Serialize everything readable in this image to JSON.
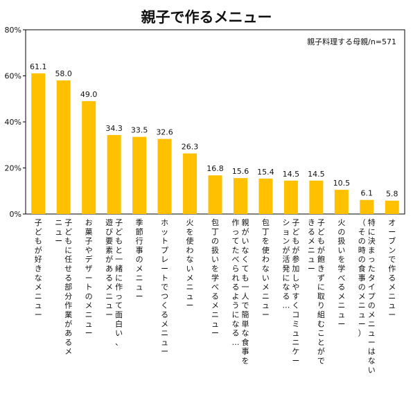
{
  "chart_data": {
    "type": "bar",
    "title": "親子で作るメニュー",
    "annotation": "親子料理する母親/n=571",
    "ylim": [
      0,
      80
    ],
    "yticks": [
      "0%",
      "20%",
      "40%",
      "60%",
      "80%"
    ],
    "ytick_values": [
      0,
      20,
      40,
      60,
      80
    ],
    "grid": false,
    "bar_color": "#ffc000",
    "categories": [
      [
        "子どもが好きなメニュー"
      ],
      [
        "子どもに任せる部分作業があるメ",
        "ニュー"
      ],
      [
        "お菓子やデザートのメニュー"
      ],
      [
        "子どもと一緒に作って面白い、",
        "遊び要素があるメニュー"
      ],
      [
        "季節行事のメニュー"
      ],
      [
        "ホットプレートでつくるメニュー"
      ],
      [
        "火を使わないメニュー"
      ],
      [
        "包丁の扱いを学べるメニュー"
      ],
      [
        "親がいなくても一人で簡単な食事を",
        "作ってたべられるようになる…"
      ],
      [
        "包丁を使わないメニュー"
      ],
      [
        "子どもが参加しやすくコミュニケー",
        "ションが活発になる…"
      ],
      [
        "子どもが飽きずに取り組むことがで",
        "きるメニュー"
      ],
      [
        "火の扱いを学べるメニュー"
      ],
      [
        "特に決まったタイプのメニューはない",
        "（その時の食事のメニュー）"
      ],
      [
        "オーブンで作るメニュー"
      ]
    ],
    "values": [
      61.1,
      58.0,
      49.0,
      34.3,
      33.5,
      32.6,
      26.3,
      16.8,
      15.6,
      15.4,
      14.5,
      14.5,
      10.5,
      6.1,
      5.8
    ],
    "value_labels": [
      "61.1",
      "58.0",
      "49.0",
      "34.3",
      "33.5",
      "32.6",
      "26.3",
      "16.8",
      "15.6",
      "15.4",
      "14.5",
      "14.5",
      "10.5",
      "6.1",
      "5.8"
    ]
  }
}
